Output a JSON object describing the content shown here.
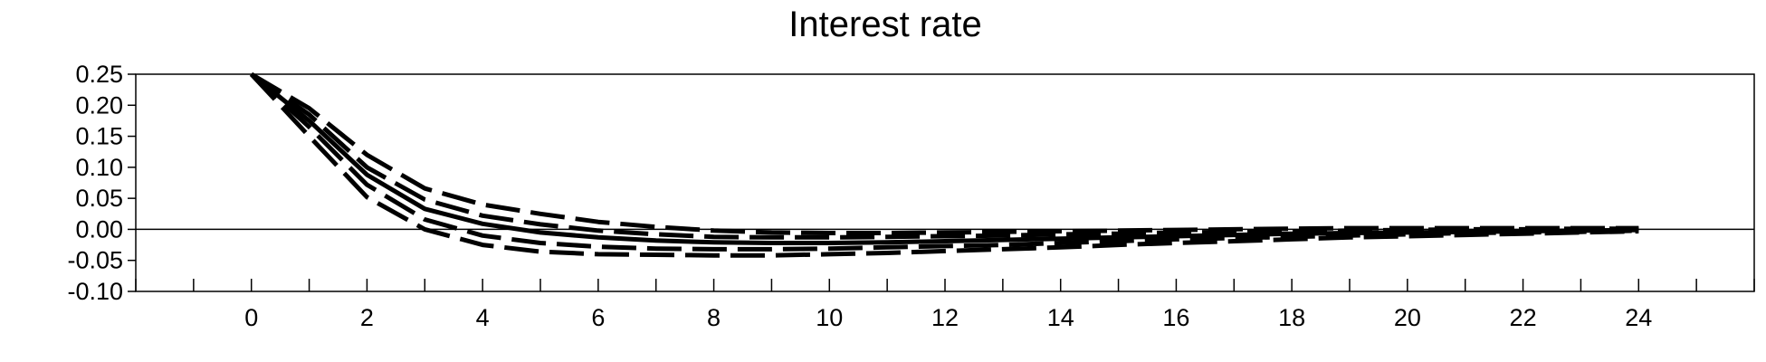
{
  "chart_data": {
    "type": "line",
    "title": "Interest rate",
    "xlabel": "",
    "ylabel": "",
    "xlim": [
      -2,
      26
    ],
    "ylim": [
      -0.1,
      0.25
    ],
    "xticks": [
      0,
      2,
      4,
      6,
      8,
      10,
      12,
      14,
      16,
      18,
      20,
      22,
      24
    ],
    "yticks": [
      0.25,
      0.2,
      0.15,
      0.1,
      0.05,
      0.0,
      -0.05,
      -0.1
    ],
    "ytick_labels": [
      "0.25",
      "0.20",
      "0.15",
      "0.10",
      "0.05",
      "0.00",
      "-0.05",
      "-0.10"
    ],
    "zero_line": true,
    "grid": false,
    "x": [
      0,
      1,
      2,
      3,
      4,
      5,
      6,
      7,
      8,
      9,
      10,
      11,
      12,
      13,
      14,
      15,
      16,
      17,
      18,
      19,
      20,
      21,
      22,
      23,
      24
    ],
    "series": [
      {
        "style": "solid",
        "values": [
          0.25,
          0.175,
          0.088,
          0.033,
          0.009,
          -0.005,
          -0.013,
          -0.018,
          -0.021,
          -0.022,
          -0.022,
          -0.021,
          -0.019,
          -0.017,
          -0.015,
          -0.013,
          -0.011,
          -0.009,
          -0.007,
          -0.006,
          -0.005,
          -0.004,
          -0.003,
          -0.002,
          -0.001
        ]
      },
      {
        "style": "dashed",
        "values": [
          0.25,
          0.195,
          0.12,
          0.066,
          0.04,
          0.025,
          0.012,
          0.004,
          -0.002,
          -0.005,
          -0.006,
          -0.006,
          -0.005,
          -0.004,
          -0.003,
          -0.002,
          -0.001,
          0.0,
          0.001,
          0.002,
          0.002,
          0.002,
          0.002,
          0.002,
          0.002
        ]
      },
      {
        "style": "dashed",
        "values": [
          0.25,
          0.185,
          0.1,
          0.048,
          0.022,
          0.008,
          -0.002,
          -0.008,
          -0.012,
          -0.013,
          -0.013,
          -0.012,
          -0.011,
          -0.01,
          -0.008,
          -0.007,
          -0.005,
          -0.004,
          -0.003,
          -0.002,
          -0.001,
          0.0,
          0.0,
          0.001,
          0.001
        ]
      },
      {
        "style": "dashed",
        "values": [
          0.25,
          0.165,
          0.072,
          0.016,
          -0.01,
          -0.022,
          -0.028,
          -0.031,
          -0.032,
          -0.032,
          -0.031,
          -0.029,
          -0.027,
          -0.025,
          -0.022,
          -0.019,
          -0.016,
          -0.014,
          -0.012,
          -0.01,
          -0.008,
          -0.006,
          -0.005,
          -0.004,
          -0.002
        ]
      },
      {
        "style": "dashed",
        "values": [
          0.25,
          0.15,
          0.052,
          0.0,
          -0.025,
          -0.036,
          -0.04,
          -0.041,
          -0.042,
          -0.042,
          -0.04,
          -0.038,
          -0.035,
          -0.032,
          -0.029,
          -0.025,
          -0.022,
          -0.019,
          -0.016,
          -0.013,
          -0.011,
          -0.009,
          -0.007,
          -0.005,
          -0.003
        ]
      }
    ]
  }
}
